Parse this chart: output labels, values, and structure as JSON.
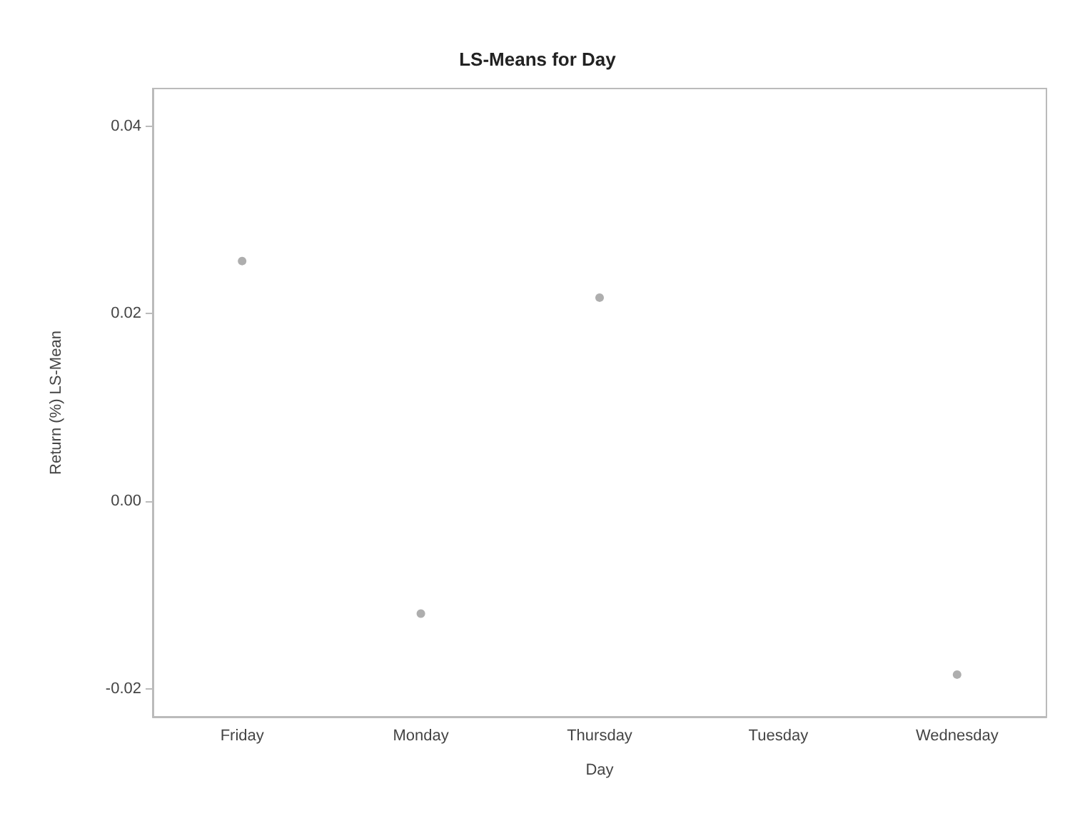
{
  "chart_data": {
    "type": "scatter",
    "title": "LS-Means for Day",
    "xlabel": "Day",
    "ylabel": "Return (%) LS-Mean",
    "categories": [
      "Friday",
      "Monday",
      "Thursday",
      "Tuesday",
      "Wednesday"
    ],
    "values": [
      0.0256,
      -0.012,
      0.0217,
      null,
      -0.0185
    ],
    "color": "#9a9a9a",
    "marker": "circle",
    "ylim": [
      -0.023,
      0.044
    ],
    "yticks": [
      {
        "value": -0.02,
        "label": "-0.02"
      },
      {
        "value": 0,
        "label": "0.00"
      },
      {
        "value": 0.02,
        "label": "0.02"
      },
      {
        "value": 0.04,
        "label": "0.04"
      }
    ],
    "grid": false
  }
}
